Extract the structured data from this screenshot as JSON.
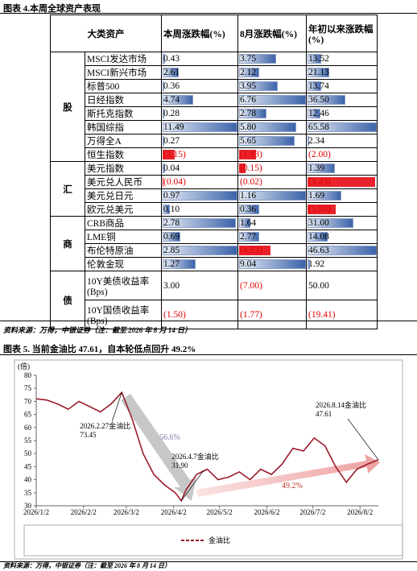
{
  "figure4": {
    "title": "图表 4.本周全球资产表现",
    "header": [
      "大类资产",
      "本周涨跌幅(%)",
      "8月涨跌幅(%)",
      "年初以来涨跌幅(%)"
    ],
    "groups": [
      {
        "name": "股",
        "bars": true,
        "rows": [
          {
            "name": "MSCI发达市场",
            "values": [
              0.43,
              3.75,
              13.52
            ],
            "value_labels": [
              "0.43",
              "3.75",
              "13.52"
            ]
          },
          {
            "name": "MSCI新兴市场",
            "values": [
              2.61,
              2.12,
              21.13
            ],
            "value_labels": [
              "2.61",
              "2.12",
              "21.13"
            ]
          },
          {
            "name": "标普500",
            "values": [
              0.36,
              3.95,
              13.74
            ],
            "value_labels": [
              "0.36",
              "3.95",
              "13.74"
            ]
          },
          {
            "name": "日经指数",
            "values": [
              4.74,
              6.76,
              36.5
            ],
            "value_labels": [
              "4.74",
              "6.76",
              "36.50"
            ]
          },
          {
            "name": "斯托克指数",
            "values": [
              0.28,
              2.78,
              12.46
            ],
            "value_labels": [
              "0.28",
              "2.78",
              "12.46"
            ]
          },
          {
            "name": "韩国综指",
            "values": [
              11.49,
              5.8,
              65.58
            ],
            "value_labels": [
              "11.49",
              "5.80",
              "65.58"
            ]
          },
          {
            "name": "万得全A",
            "values": [
              0.27,
              5.65,
              2.34
            ],
            "value_labels": [
              "0.27",
              "5.65",
              "2.34"
            ]
          },
          {
            "name": "恒生指数",
            "values": [
              -2.15,
              -1.93,
              -2.0
            ],
            "value_labels": [
              "(2.15)",
              "(1.93)",
              "(2.00)"
            ]
          }
        ]
      },
      {
        "name": "汇",
        "bars": true,
        "rows": [
          {
            "name": "美元指数",
            "values": [
              0.04,
              -0.15,
              1.39
            ],
            "value_labels": [
              "0.04",
              "(0.15)",
              "1.39"
            ]
          },
          {
            "name": "美元兑人民币",
            "values": [
              -0.04,
              -0.02,
              -3.43
            ],
            "value_labels": [
              "(0.04)",
              "(0.02)",
              "(3.43)"
            ]
          },
          {
            "name": "美元兑日元",
            "values": [
              0.97,
              1.16,
              1.69
            ],
            "value_labels": [
              "0.97",
              "1.16",
              "1.69"
            ]
          },
          {
            "name": "欧元兑美元",
            "values": [
              0.1,
              0.36,
              -1.5
            ],
            "value_labels": [
              "0.10",
              "0.36",
              "(1.50)"
            ]
          }
        ]
      },
      {
        "name": "商",
        "bars": true,
        "rows": [
          {
            "name": "CRB商品",
            "values": [
              2.78,
              1.64,
              31.0
            ],
            "value_labels": [
              "2.78",
              "1.64",
              "31.00"
            ]
          },
          {
            "name": "LME铜",
            "values": [
              0.69,
              2.77,
              14.08
            ],
            "value_labels": [
              "0.69",
              "2.77",
              "14.08"
            ]
          },
          {
            "name": "布伦特原油",
            "values": [
              2.85,
              -4.53,
              46.63
            ],
            "value_labels": [
              "2.85",
              "(4.53)",
              "46.63"
            ]
          },
          {
            "name": "伦敦金现",
            "values": [
              1.27,
              9.04,
              1.92
            ],
            "value_labels": [
              "1.27",
              "9.04",
              "1.92"
            ]
          }
        ]
      },
      {
        "name": "债",
        "bars": false,
        "rows": [
          {
            "name": "10Y美债收益率(Bps)",
            "values": [
              3.0,
              -7.0,
              50.0
            ],
            "value_labels": [
              "3.00",
              "(7.00)",
              "50.00"
            ]
          },
          {
            "name": "10Y国债收益率(Bps)",
            "values": [
              -1.5,
              -1.77,
              -19.41
            ],
            "value_labels": [
              "(1.50)",
              "(1.77)",
              "(19.41)"
            ]
          }
        ]
      }
    ],
    "source": "资料来源：万得，中银证券（注：截至 2026 年 8 月 14 日）"
  },
  "figure5": {
    "title": "图表 5. 当前金油比 47.61，自本轮低点回升 49.2%",
    "source": "资料来源：万得，中银证券（注：截至 2026 年 8 月 14 日）"
  },
  "chart_data": {
    "type": "line",
    "y_label": "(倍)",
    "x": [
      "2026/1/2",
      "2026/1/9",
      "2026/1/16",
      "2026/1/23",
      "2026/1/30",
      "2026/2/6",
      "2026/2/13",
      "2026/2/20",
      "2026/2/27",
      "2026/3/6",
      "2026/3/13",
      "2026/3/20",
      "2026/3/27",
      "2026/4/3",
      "2026/4/7",
      "2026/4/10",
      "2026/4/17",
      "2026/4/24",
      "2026/5/1",
      "2026/5/8",
      "2026/5/15",
      "2026/5/22",
      "2026/5/29",
      "2026/6/5",
      "2026/6/12",
      "2026/6/19",
      "2026/6/26",
      "2026/7/3",
      "2026/7/10",
      "2026/7/17",
      "2026/7/24",
      "2026/7/31",
      "2026/8/7",
      "2026/8/14"
    ],
    "series": [
      {
        "name": "金油比",
        "color": "#9b1b2a",
        "values": [
          71,
          70.5,
          69,
          67,
          70,
          68,
          66,
          69,
          73.45,
          63,
          50,
          42,
          38,
          35,
          31.9,
          36,
          42,
          44,
          40,
          41,
          43,
          40,
          44,
          42,
          46,
          52,
          51,
          56,
          53,
          45,
          39,
          44,
          46,
          47.61
        ]
      }
    ],
    "xlim": [
      "2026/1/2",
      "2026/8/14"
    ],
    "xticks": [
      "2026/1/2",
      "2026/2/2",
      "2026/3/2",
      "2026/4/2",
      "2026/5/2",
      "2026/6/2",
      "2026/7/2",
      "2026/8/2"
    ],
    "ylim": [
      30,
      80
    ],
    "yticks": [
      30,
      35,
      40,
      45,
      50,
      55,
      60,
      65,
      70,
      75,
      80
    ],
    "annotations": [
      {
        "text": "2026.2.27金油比",
        "x": "2026/2/27",
        "value": 73.45,
        "value_label": "73.45"
      },
      {
        "text": "2026.4.7金油比",
        "x": "2026/4/7",
        "value": 31.9,
        "value_label": "31.90"
      },
      {
        "text": "2026.8.14金油比",
        "x": "2026/8/14",
        "value": 47.61,
        "value_label": "47.61"
      }
    ],
    "changes": [
      {
        "value": 56.6,
        "label": "56.6%"
      },
      {
        "value": 49.2,
        "label": "49.2%"
      }
    ]
  }
}
